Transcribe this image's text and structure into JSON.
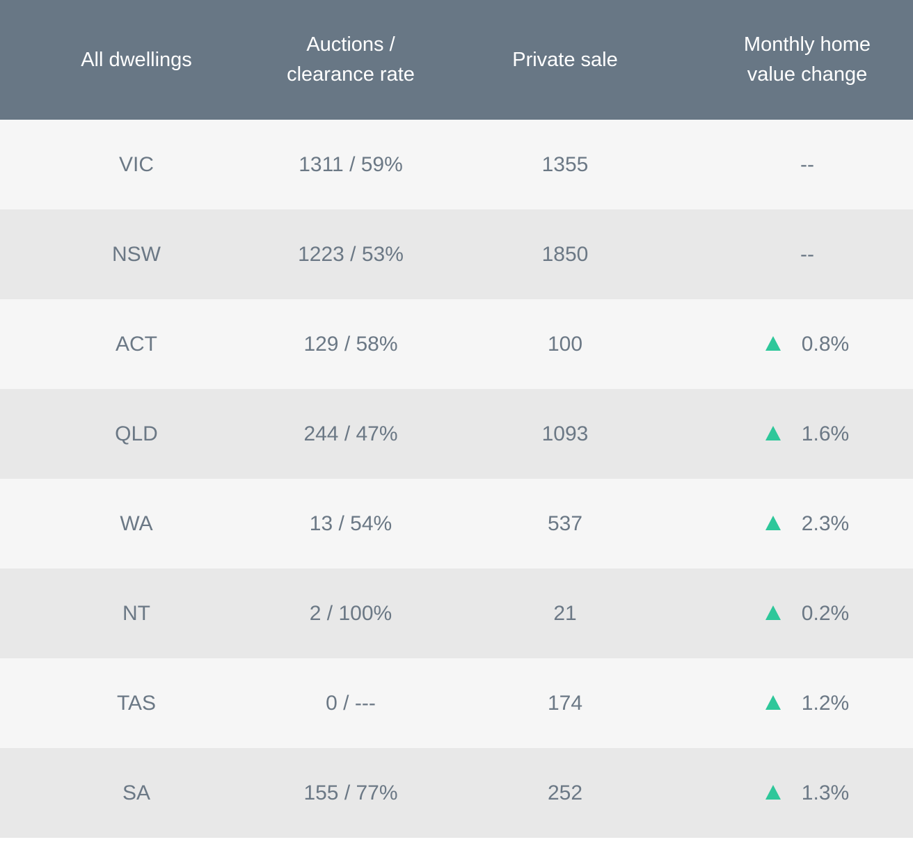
{
  "header": {
    "col1": "All dwellings",
    "col2": "Auctions /\nclearance rate",
    "col3": "Private sale",
    "col4": "Monthly home\nvalue change"
  },
  "rows": [
    {
      "state": "VIC",
      "auctions": "1311 / 59%",
      "private": "1355",
      "change": "--",
      "trend": "none"
    },
    {
      "state": "NSW",
      "auctions": "1223 / 53%",
      "private": "1850",
      "change": "--",
      "trend": "none"
    },
    {
      "state": "ACT",
      "auctions": "129 / 58%",
      "private": "100",
      "change": "0.8%",
      "trend": "up"
    },
    {
      "state": "QLD",
      "auctions": "244 / 47%",
      "private": "1093",
      "change": "1.6%",
      "trend": "up"
    },
    {
      "state": "WA",
      "auctions": "13 / 54%",
      "private": "537",
      "change": "2.3%",
      "trend": "up"
    },
    {
      "state": "NT",
      "auctions": "2 / 100%",
      "private": "21",
      "change": "0.2%",
      "trend": "up"
    },
    {
      "state": "TAS",
      "auctions": "0 / ---",
      "private": "174",
      "change": "1.2%",
      "trend": "up"
    },
    {
      "state": "SA",
      "auctions": "155 / 77%",
      "private": "252",
      "change": "1.3%",
      "trend": "up"
    }
  ],
  "colors": {
    "header_bg": "#687785",
    "row_light": "#f6f6f6",
    "row_dark": "#e8e8e8",
    "up_arrow": "#2ec79a"
  }
}
